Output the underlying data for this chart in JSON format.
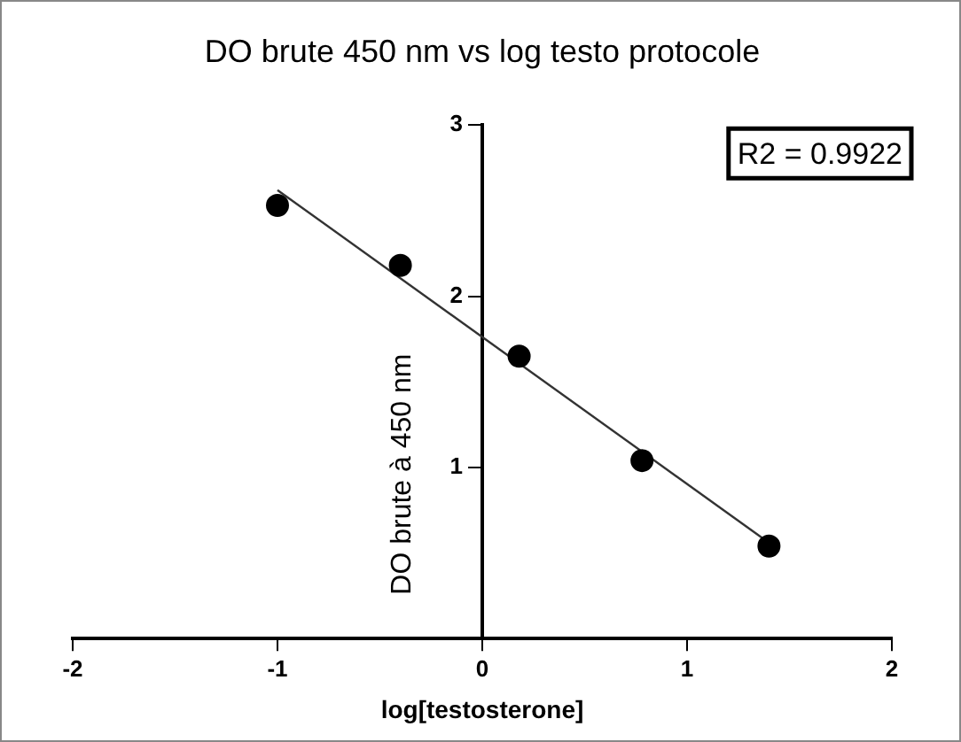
{
  "chart_data": {
    "type": "scatter",
    "title": "DO brute 450 nm vs log testo protocole",
    "xlabel": "log[testosterone]",
    "ylabel": "DO brute à 450 nm",
    "annotations": [
      "R2 = 0.9922"
    ],
    "xlim": [
      -2,
      2
    ],
    "xticks": [
      -2,
      -1,
      0,
      1,
      2
    ],
    "ylim": [
      0,
      3
    ],
    "yticks": [
      1,
      2,
      3
    ],
    "grid": false,
    "legend": false,
    "marker": "circle",
    "series": [
      {
        "color": "#000000",
        "x": [
          -1.0,
          -0.4,
          0.18,
          0.78,
          1.4
        ],
        "values": [
          2.53,
          2.18,
          1.65,
          1.04,
          0.54
        ]
      },
      {
        "type": "line",
        "color": "#333333",
        "x": [
          -1.0,
          1.4
        ],
        "values": [
          2.62,
          0.56
        ],
        "marker": "none",
        "line_style": "solid"
      }
    ]
  }
}
